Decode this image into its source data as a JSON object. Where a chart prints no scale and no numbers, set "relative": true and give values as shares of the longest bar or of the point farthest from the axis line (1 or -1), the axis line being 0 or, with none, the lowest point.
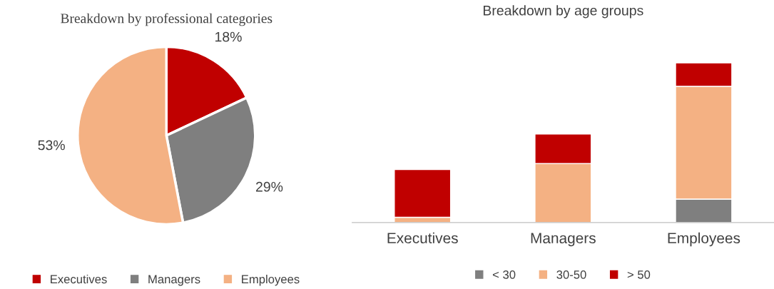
{
  "chart_data": [
    {
      "type": "pie",
      "title": "Breakdown by professional categories",
      "categories": [
        "Executives",
        "Managers",
        "Employees"
      ],
      "values": [
        18,
        29,
        53
      ],
      "colors": [
        "#c00000",
        "#7f7f7f",
        "#f4b183"
      ],
      "value_labels": [
        "18%",
        "29%",
        "53%"
      ],
      "legend": "bottom"
    },
    {
      "type": "bar",
      "title": "Breakdown by age groups",
      "categories": [
        "Executives",
        "Managers",
        "Employees"
      ],
      "stacked": true,
      "relative": true,
      "legend": "bottom",
      "series": [
        {
          "name": "< 30",
          "color": "#7f7f7f",
          "values": [
            0,
            0,
            0.147
          ]
        },
        {
          "name": "30-50",
          "color": "#f4b183",
          "values": [
            0.033,
            0.37,
            0.706
          ]
        },
        {
          "name": "> 50",
          "color": "#c00000",
          "values": [
            0.299,
            0.185,
            0.147
          ]
        }
      ]
    }
  ]
}
